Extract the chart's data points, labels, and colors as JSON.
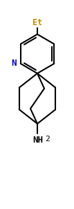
{
  "bg_color": "#ffffff",
  "line_color": "#000000",
  "et_color": "#cc8800",
  "n_color": "#0000cc",
  "nh2_color": "#000000",
  "et_text": "Et",
  "n_text": "N",
  "nh2_text": "NH",
  "two_text": "2",
  "figsize": [
    1.07,
    2.99
  ],
  "dpi": 100
}
